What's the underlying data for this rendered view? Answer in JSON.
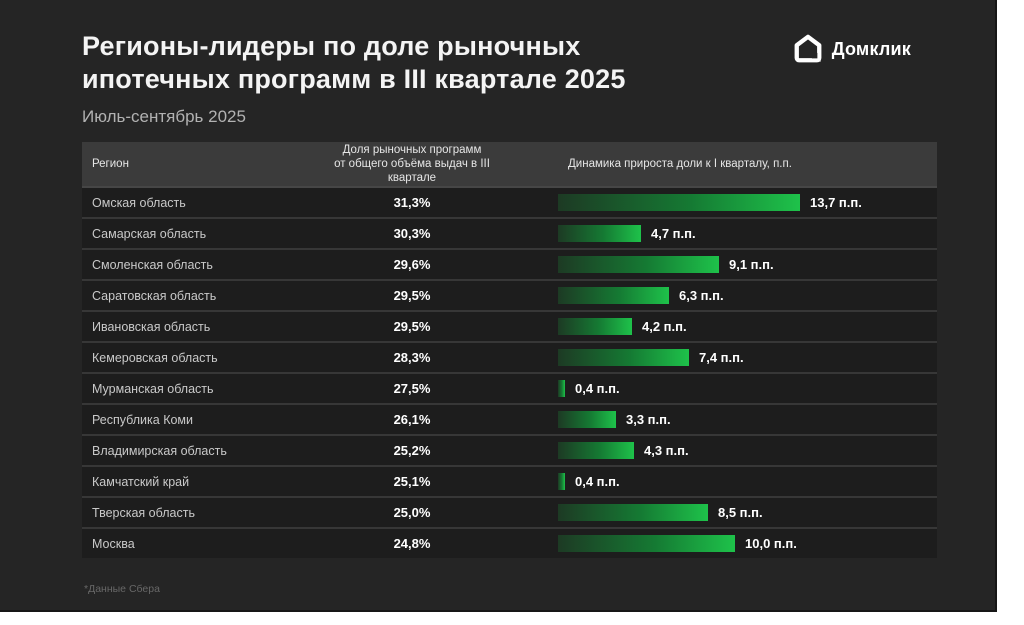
{
  "page": {
    "title": "Регионы-лидеры по доле рыночных\nипотечных программ в III квартале 2025",
    "subtitle": "Июль-сентябрь 2025",
    "footnote": "*Данные Сбера"
  },
  "logo": {
    "text": "Домклик",
    "icon": "domclick-house-icon"
  },
  "colors": {
    "canvas_bg": "#252525",
    "header_band_bg": "#3b3b3b",
    "row_bg": "#1d1d1d",
    "bar_gradient_start": "#1d3a24",
    "bar_gradient_end": "#1ec24a",
    "accent_green": "#1ec24a"
  },
  "table": {
    "headers": {
      "region": "Регион",
      "share": "Доля рыночных программ\nот общего объёма выдач в III квартале",
      "dynamics": "Динамика прироста доли к I кварталу, п.п."
    },
    "rows": [
      {
        "region": "Омская область",
        "share": "31,3%",
        "delta_label": "13,7 п.п.",
        "delta_value": 13.7
      },
      {
        "region": "Самарская область",
        "share": "30,3%",
        "delta_label": "4,7 п.п.",
        "delta_value": 4.7
      },
      {
        "region": "Смоленская область",
        "share": "29,6%",
        "delta_label": "9,1 п.п.",
        "delta_value": 9.1
      },
      {
        "region": "Саратовская область",
        "share": "29,5%",
        "delta_label": "6,3 п.п.",
        "delta_value": 6.3
      },
      {
        "region": "Ивановская область",
        "share": "29,5%",
        "delta_label": "4,2 п.п.",
        "delta_value": 4.2
      },
      {
        "region": "Кемеровская область",
        "share": "28,3%",
        "delta_label": "7,4 п.п.",
        "delta_value": 7.4
      },
      {
        "region": "Мурманская область",
        "share": "27,5%",
        "delta_label": "0,4 п.п.",
        "delta_value": 0.4
      },
      {
        "region": "Республика Коми",
        "share": "26,1%",
        "delta_label": "3,3 п.п.",
        "delta_value": 3.3
      },
      {
        "region": "Владимирская область",
        "share": "25,2%",
        "delta_label": "4,3 п.п.",
        "delta_value": 4.3
      },
      {
        "region": "Камчатский край",
        "share": "25,1%",
        "delta_label": "0,4 п.п.",
        "delta_value": 0.4
      },
      {
        "region": "Тверская область",
        "share": "25,0%",
        "delta_label": "8,5 п.п.",
        "delta_value": 8.5
      },
      {
        "region": "Москва",
        "share": "24,8%",
        "delta_label": "10,0 п.п.",
        "delta_value": 10.0
      }
    ]
  },
  "chart_data": {
    "type": "bar",
    "orientation": "horizontal",
    "title": "Регионы-лидеры по доле рыночных ипотечных программ в III квартале 2025",
    "subtitle": "Июль-сентябрь 2025",
    "categories": [
      "Омская область",
      "Самарская область",
      "Смоленская область",
      "Саратовская область",
      "Ивановская область",
      "Кемеровская область",
      "Мурманская область",
      "Республика Коми",
      "Владимирская область",
      "Камчатский край",
      "Тверская область",
      "Москва"
    ],
    "series": [
      {
        "name": "Доля рыночных программ от общего объёма выдач в III квартале, %",
        "values": [
          31.3,
          30.3,
          29.6,
          29.5,
          29.5,
          28.3,
          27.5,
          26.1,
          25.2,
          25.1,
          25.0,
          24.8
        ]
      },
      {
        "name": "Динамика прироста доли к I кварталу, п.п.",
        "values": [
          13.7,
          4.7,
          9.1,
          6.3,
          4.2,
          7.4,
          0.4,
          3.3,
          4.3,
          0.4,
          8.5,
          10.0
        ]
      }
    ],
    "xlim": [
      0,
      13.7
    ],
    "grid": false,
    "legend": "none",
    "data_labels": true,
    "source_note": "*Данные Сбера"
  }
}
